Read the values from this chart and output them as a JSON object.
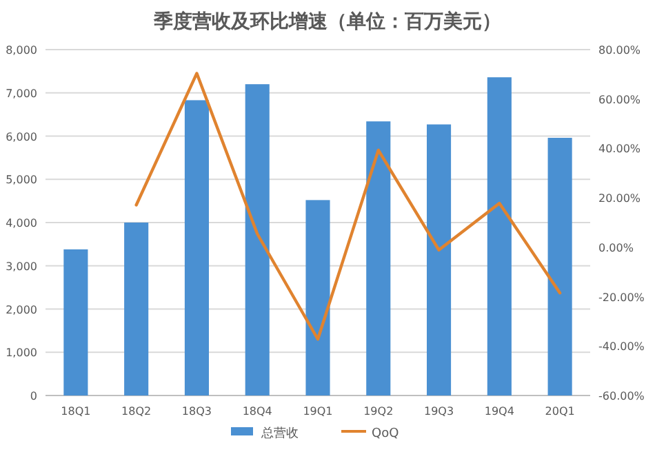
{
  "chart_data": {
    "type": "bar",
    "title": "季度营收及环比增速（单位：百万美元）",
    "categories": [
      "18Q1",
      "18Q2",
      "18Q3",
      "18Q4",
      "19Q1",
      "19Q2",
      "19Q3",
      "19Q4",
      "20Q1"
    ],
    "series": [
      {
        "name": "总营收",
        "color": "#4a90d2",
        "values": [
          3380,
          4000,
          6830,
          7200,
          4520,
          6340,
          6270,
          7360,
          5960
        ]
      },
      {
        "name": "QoQ",
        "type": "line",
        "axis": "y2",
        "color": "#e0832f",
        "marker": "none",
        "line_style": "solid",
        "values": [
          null,
          17.1,
          70.4,
          5.4,
          -37.2,
          39.3,
          -1.1,
          17.8,
          -18.5
        ]
      }
    ],
    "ylim": [
      0,
      8000
    ],
    "yticks": [
      0,
      {
        "value": 1000,
        "label": "1,000"
      },
      {
        "value": 2000,
        "label": "2,000"
      },
      {
        "value": 3000,
        "label": "3,000"
      },
      {
        "value": 4000,
        "label": "4,000"
      },
      {
        "value": 5000,
        "label": "5,000"
      },
      {
        "value": 6000,
        "label": "6,000"
      },
      {
        "value": 7000,
        "label": "7,000"
      },
      {
        "value": 8000,
        "label": "8,000"
      }
    ],
    "y2lim": [
      -60,
      80
    ],
    "y2ticks": [
      {
        "value": -60,
        "label": "-60.00%"
      },
      {
        "value": -40,
        "label": "-40.00%"
      },
      {
        "value": -20,
        "label": "-20.00%"
      },
      {
        "value": 0,
        "label": "0.00%"
      },
      {
        "value": 20,
        "label": "20.00%"
      },
      {
        "value": 40,
        "label": "40.00%"
      },
      {
        "value": 60,
        "label": "60.00%"
      },
      {
        "value": 80,
        "label": "80.00%"
      }
    ],
    "grid": "y",
    "legend": "bottom"
  }
}
